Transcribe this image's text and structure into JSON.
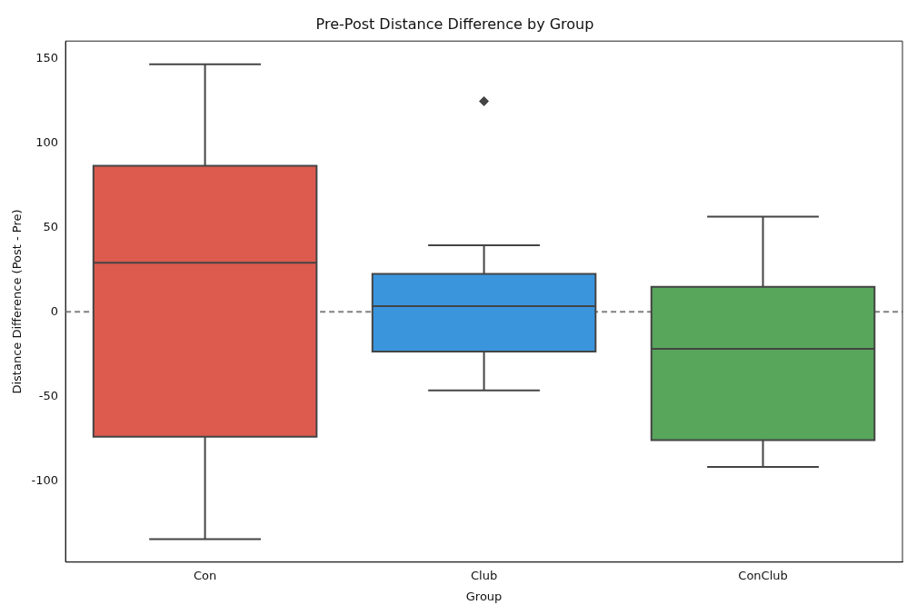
{
  "chart_data": {
    "type": "box",
    "title": "Pre-Post Distance Difference by Group",
    "xlabel": "Group",
    "ylabel": "Distance Difference (Post - Pre)",
    "categories": [
      "Con",
      "Club",
      "ConClub"
    ],
    "boxes": [
      {
        "low": -134.6,
        "q1": -73.9,
        "median": 29,
        "q3": 86.4,
        "high": 146.6
      },
      {
        "low": -46.5,
        "q1": -23.5,
        "median": 3.3,
        "q3": 22.4,
        "high": 39.4,
        "outliers": [
          124.7
        ]
      },
      {
        "low": -91.9,
        "q1": -76,
        "median": -21.9,
        "q3": 14.8,
        "high": 56.3
      }
    ],
    "colors": [
      "#dc5a4e",
      "#3a95dd",
      "#58a55c"
    ],
    "ylim": [
      -148.2,
      160.3
    ],
    "yticks": [
      -100,
      -50,
      0,
      50,
      100,
      150
    ],
    "ref_lines": [
      {
        "axis": "y",
        "value": 0,
        "color": "#808080",
        "line_style": "dashed"
      }
    ],
    "marker": "diamond",
    "grid": false,
    "legend": false
  }
}
